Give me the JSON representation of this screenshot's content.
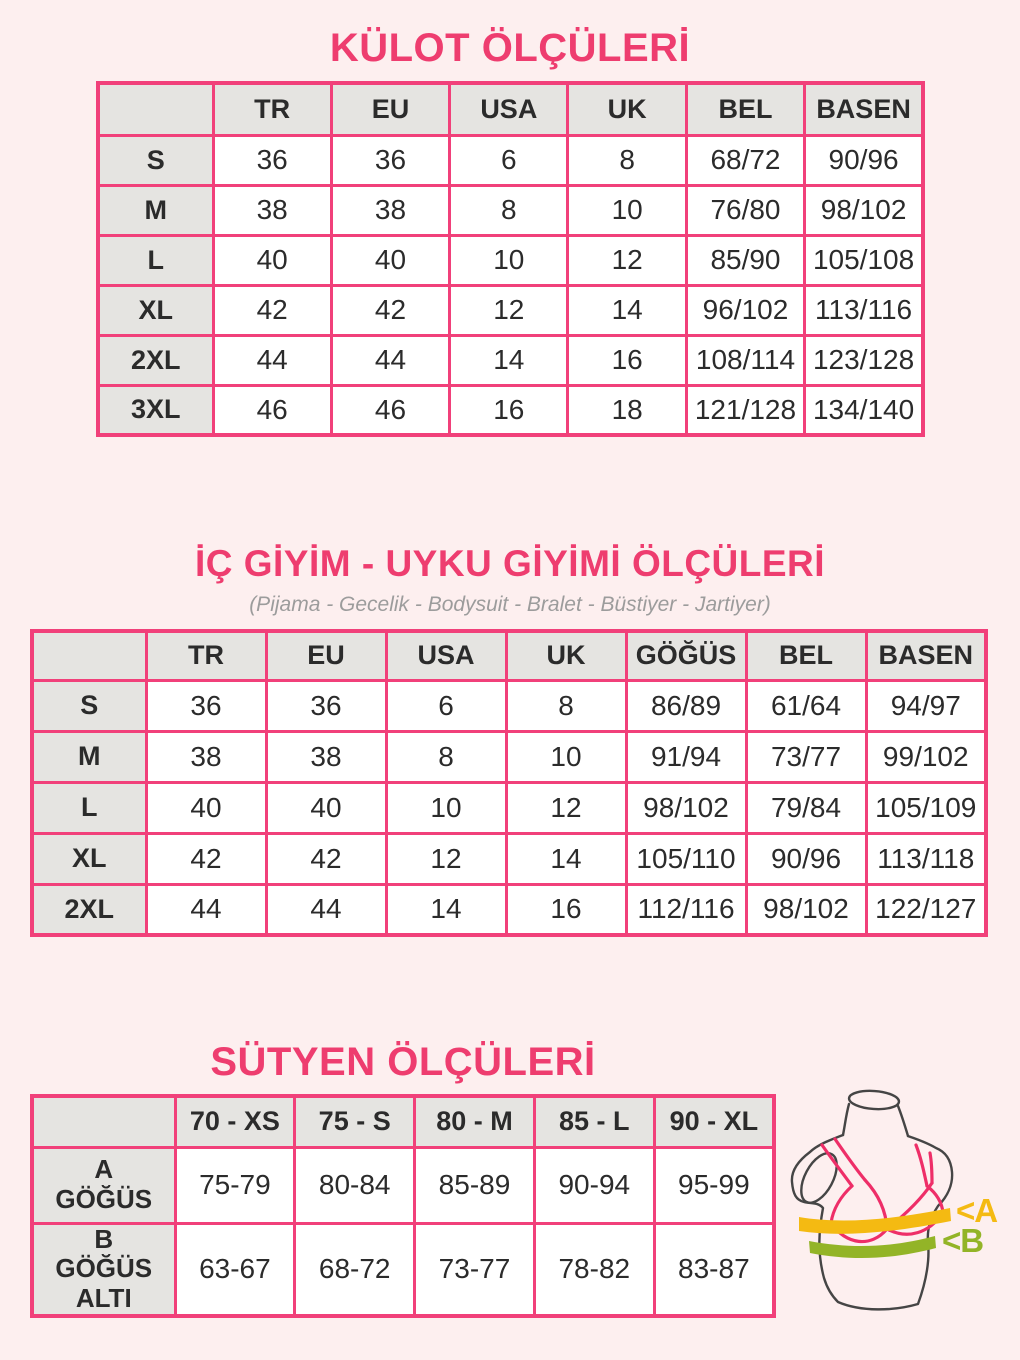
{
  "colors": {
    "background": "#fdefef",
    "table_border_pink": "#f1407a",
    "title_pink": "#ee3d6f",
    "header_cell_gray": "#e5e4e1",
    "cell_text": "#2b2b2b",
    "subtitle_gray": "#9c9c9c",
    "band_a_yellow": "#f4ba12",
    "band_b_green": "#93b427"
  },
  "kulot": {
    "title": "KÜLOT ÖLÇÜLERİ",
    "table": {
      "headers": [
        "TR",
        "EU",
        "USA",
        "UK",
        "BEL",
        "BASEN"
      ],
      "rows": [
        {
          "label": "S",
          "values": [
            "36",
            "36",
            "6",
            "8",
            "68/72",
            "90/96"
          ]
        },
        {
          "label": "M",
          "values": [
            "38",
            "38",
            "8",
            "10",
            "76/80",
            "98/102"
          ]
        },
        {
          "label": "L",
          "values": [
            "40",
            "40",
            "10",
            "12",
            "85/90",
            "105/108"
          ]
        },
        {
          "label": "XL",
          "values": [
            "42",
            "42",
            "12",
            "14",
            "96/102",
            "113/116"
          ]
        },
        {
          "label": "2XL",
          "values": [
            "44",
            "44",
            "14",
            "16",
            "108/114",
            "123/128"
          ]
        },
        {
          "label": "3XL",
          "values": [
            "46",
            "46",
            "16",
            "18",
            "121/128",
            "134/140"
          ]
        }
      ]
    }
  },
  "ic_giyim": {
    "title": "İÇ GİYİM - UYKU GİYİMİ ÖLÇÜLERİ",
    "subtitle": "(Pijama - Gecelik - Bodysuit - Bralet - Büstiyer - Jartiyer)",
    "table": {
      "headers": [
        "TR",
        "EU",
        "USA",
        "UK",
        "GÖĞÜS",
        "BEL",
        "BASEN"
      ],
      "rows": [
        {
          "label": "S",
          "values": [
            "36",
            "36",
            "6",
            "8",
            "86/89",
            "61/64",
            "94/97"
          ]
        },
        {
          "label": "M",
          "values": [
            "38",
            "38",
            "8",
            "10",
            "91/94",
            "73/77",
            "99/102"
          ]
        },
        {
          "label": "L",
          "values": [
            "40",
            "40",
            "10",
            "12",
            "98/102",
            "79/84",
            "105/109"
          ]
        },
        {
          "label": "XL",
          "values": [
            "42",
            "42",
            "12",
            "14",
            "105/110",
            "90/96",
            "113/118"
          ]
        },
        {
          "label": "2XL",
          "values": [
            "44",
            "44",
            "14",
            "16",
            "112/116",
            "98/102",
            "122/127"
          ]
        }
      ]
    }
  },
  "sutyen": {
    "title": "SÜTYEN ÖLÇÜLERİ",
    "table": {
      "headers": [
        "70 - XS",
        "75 - S",
        "80 - M",
        "85 - L",
        "90 - XL"
      ],
      "rows": [
        {
          "label": "A GÖĞÜS",
          "values": [
            "75-79",
            "80-84",
            "85-89",
            "90-94",
            "95-99"
          ]
        },
        {
          "label": "B GÖĞÜS ALTI",
          "values": [
            "63-67",
            "68-72",
            "73-77",
            "78-82",
            "83-87"
          ]
        }
      ]
    },
    "diagram": {
      "label_a": "<A",
      "label_b": "<B"
    }
  }
}
